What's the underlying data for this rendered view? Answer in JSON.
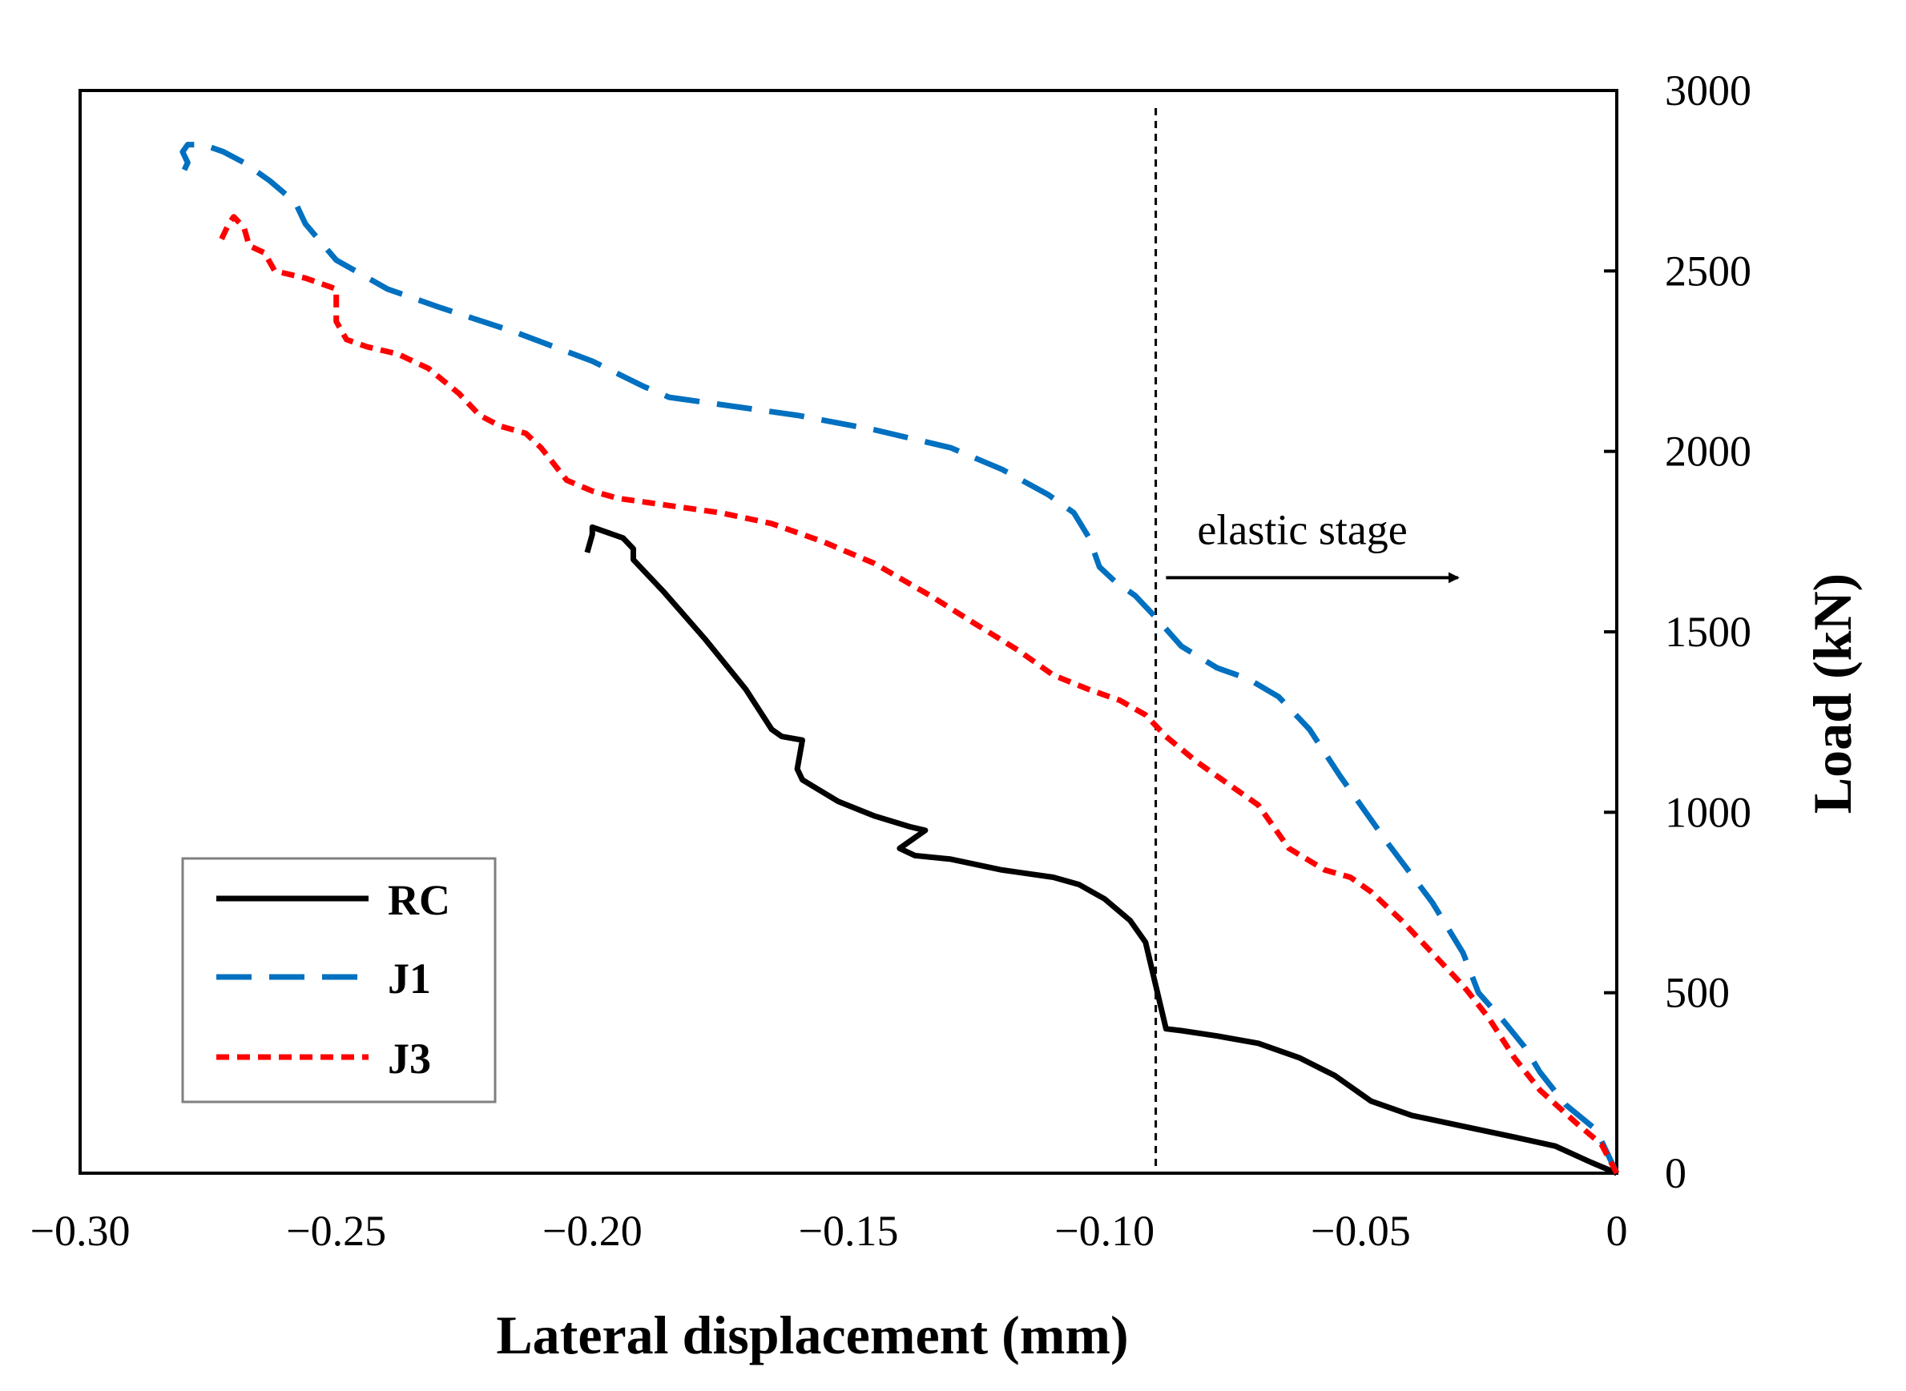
{
  "chart_data": {
    "type": "line",
    "title": "",
    "xlabel": "Lateral displacement (mm)",
    "ylabel": "Load (kN)",
    "xlim": [
      -0.3,
      0
    ],
    "ylim": [
      0,
      3000
    ],
    "x_ticks": [
      -0.3,
      -0.25,
      -0.2,
      -0.15,
      -0.1,
      -0.05,
      0
    ],
    "x_tick_labels": [
      "−0.30",
      "−0.25",
      "−0.20",
      "−0.15",
      "−0.10",
      "−0.05",
      "0"
    ],
    "y_ticks": [
      0,
      500,
      1000,
      1500,
      2000,
      2500,
      3000
    ],
    "y_tick_labels": [
      "0",
      "500",
      "1000",
      "1500",
      "2000",
      "2500",
      "3000"
    ],
    "y_axis_side": "right",
    "grid": false,
    "legend_position": "bottom-left",
    "series": [
      {
        "name": "RC",
        "color": "#000000",
        "dash": "solid",
        "x": [
          0,
          -0.005,
          -0.012,
          -0.02,
          -0.03,
          -0.04,
          -0.048,
          -0.055,
          -0.062,
          -0.07,
          -0.078,
          -0.085,
          -0.088,
          -0.09,
          -0.092,
          -0.095,
          -0.1,
          -0.105,
          -0.11,
          -0.12,
          -0.13,
          -0.137,
          -0.14,
          -0.135,
          -0.138,
          -0.145,
          -0.152,
          -0.159,
          -0.16,
          -0.159,
          -0.163,
          -0.165,
          -0.17,
          -0.178,
          -0.186,
          -0.192,
          -0.192,
          -0.194,
          -0.198,
          -0.2,
          -0.2,
          -0.201
        ],
        "y": [
          0,
          30,
          75,
          100,
          130,
          160,
          200,
          270,
          320,
          360,
          380,
          395,
          400,
          520,
          640,
          700,
          760,
          800,
          820,
          840,
          870,
          880,
          900,
          950,
          960,
          990,
          1030,
          1090,
          1120,
          1200,
          1210,
          1230,
          1340,
          1480,
          1610,
          1700,
          1730,
          1760,
          1780,
          1790,
          1770,
          1720
        ]
      },
      {
        "name": "J1",
        "color": "#0070C0",
        "dash": "dashed",
        "x": [
          0,
          -0.004,
          -0.01,
          -0.015,
          -0.018,
          -0.022,
          -0.027,
          -0.03,
          -0.036,
          -0.045,
          -0.054,
          -0.06,
          -0.066,
          -0.072,
          -0.078,
          -0.085,
          -0.09,
          -0.094,
          -0.098,
          -0.101,
          -0.102,
          -0.103,
          -0.106,
          -0.111,
          -0.12,
          -0.13,
          -0.145,
          -0.16,
          -0.175,
          -0.185,
          -0.19,
          -0.2,
          -0.215,
          -0.23,
          -0.24,
          -0.25,
          -0.253,
          -0.256,
          -0.258,
          -0.263,
          -0.268,
          -0.272,
          -0.276,
          -0.279,
          -0.28,
          -0.279,
          -0.28
        ],
        "y": [
          0,
          120,
          190,
          280,
          350,
          420,
          500,
          610,
          750,
          920,
          1100,
          1230,
          1320,
          1370,
          1400,
          1460,
          1540,
          1600,
          1640,
          1680,
          1720,
          1760,
          1830,
          1880,
          1950,
          2010,
          2060,
          2100,
          2130,
          2150,
          2180,
          2250,
          2330,
          2400,
          2450,
          2530,
          2580,
          2630,
          2690,
          2750,
          2800,
          2830,
          2850,
          2850,
          2830,
          2800,
          2770
        ]
      },
      {
        "name": "J3",
        "color": "#FF0000",
        "dash": "short-dash",
        "x": [
          0,
          -0.003,
          -0.008,
          -0.015,
          -0.02,
          -0.025,
          -0.03,
          -0.036,
          -0.042,
          -0.048,
          -0.052,
          -0.057,
          -0.064,
          -0.07,
          -0.076,
          -0.082,
          -0.088,
          -0.092,
          -0.097,
          -0.103,
          -0.11,
          -0.117,
          -0.125,
          -0.134,
          -0.145,
          -0.155,
          -0.165,
          -0.175,
          -0.185,
          -0.195,
          -0.2,
          -0.205,
          -0.21,
          -0.213,
          -0.218,
          -0.222,
          -0.226,
          -0.232,
          -0.238,
          -0.244,
          -0.248,
          -0.25,
          -0.25,
          -0.256,
          -0.262,
          -0.264,
          -0.267,
          -0.268,
          -0.27,
          -0.271,
          -0.273
        ],
        "y": [
          0,
          80,
          140,
          230,
          320,
          430,
          520,
          610,
          700,
          780,
          820,
          840,
          900,
          1020,
          1080,
          1140,
          1210,
          1270,
          1310,
          1340,
          1380,
          1450,
          1520,
          1600,
          1690,
          1750,
          1800,
          1830,
          1850,
          1870,
          1890,
          1920,
          2010,
          2050,
          2070,
          2100,
          2160,
          2230,
          2270,
          2290,
          2310,
          2360,
          2450,
          2480,
          2500,
          2550,
          2570,
          2620,
          2650,
          2630,
          2570
        ]
      }
    ],
    "annotations": [
      {
        "type": "vertical-line",
        "x": -0.09,
        "style": "dotted"
      },
      {
        "type": "arrow",
        "text": "elastic stage",
        "x_start": -0.088,
        "x_end": -0.031,
        "y": 1650
      }
    ]
  }
}
